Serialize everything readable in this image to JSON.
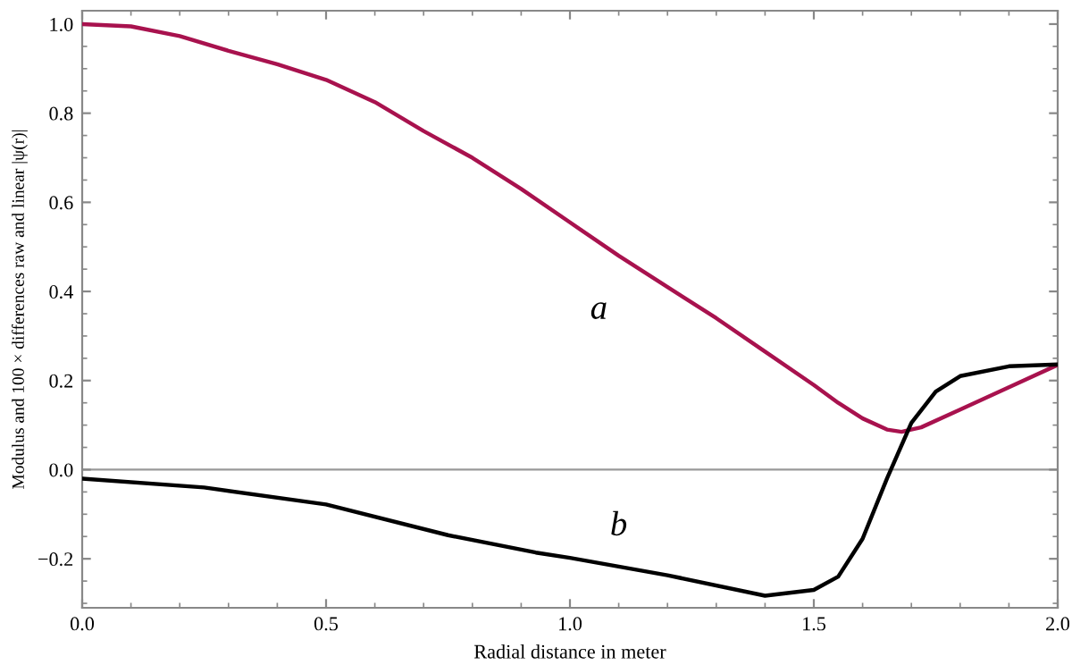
{
  "chart_data": {
    "type": "line",
    "xlabel": "Radial distance in meter",
    "ylabel": "Modulus and 100 × differences raw and linear |ψ(r)|",
    "series": [
      {
        "name": "a",
        "color": "#a8124e",
        "x": [
          0,
          0.1,
          0.2,
          0.3,
          0.4,
          0.5,
          0.6,
          0.7,
          0.8,
          0.9,
          1.0,
          1.1,
          1.2,
          1.3,
          1.4,
          1.5,
          1.55,
          1.6,
          1.65,
          1.68,
          1.72,
          1.8,
          1.9,
          2.0
        ],
        "values": [
          1.0,
          0.995,
          0.973,
          0.94,
          0.91,
          0.875,
          0.825,
          0.76,
          0.7,
          0.63,
          0.555,
          0.48,
          0.41,
          0.34,
          0.265,
          0.19,
          0.15,
          0.115,
          0.09,
          0.085,
          0.095,
          0.135,
          0.185,
          0.235
        ]
      },
      {
        "name": "b",
        "color": "#000000",
        "x": [
          0,
          0.25,
          0.5,
          0.75,
          0.93,
          1.0,
          1.2,
          1.4,
          1.5,
          1.55,
          1.6,
          1.65,
          1.7,
          1.75,
          1.8,
          1.9,
          2.0
        ],
        "values": [
          -0.02,
          -0.04,
          -0.078,
          -0.147,
          -0.186,
          -0.198,
          -0.237,
          -0.283,
          -0.27,
          -0.24,
          -0.155,
          -0.02,
          0.105,
          0.175,
          0.21,
          0.232,
          0.236
        ]
      }
    ],
    "ref_lines": [
      {
        "axis": "y",
        "value": 0,
        "color": "#999999"
      }
    ],
    "xlim": [
      0,
      2
    ],
    "ylim": [
      -0.31,
      1.03
    ],
    "xticks": [
      {
        "value": 0,
        "label": "0.0"
      },
      0.5,
      {
        "value": 1,
        "label": "1.0"
      },
      1.5,
      {
        "value": 2,
        "label": "2.0"
      }
    ],
    "yticks": [
      {
        "value": -0.2,
        "label": "−0.2"
      },
      {
        "value": 0,
        "label": "0.0"
      },
      0.2,
      0.4,
      0.6,
      0.8,
      {
        "value": 1,
        "label": "1.0"
      }
    ],
    "grid": false,
    "marker": "none",
    "line_style": "solid"
  }
}
